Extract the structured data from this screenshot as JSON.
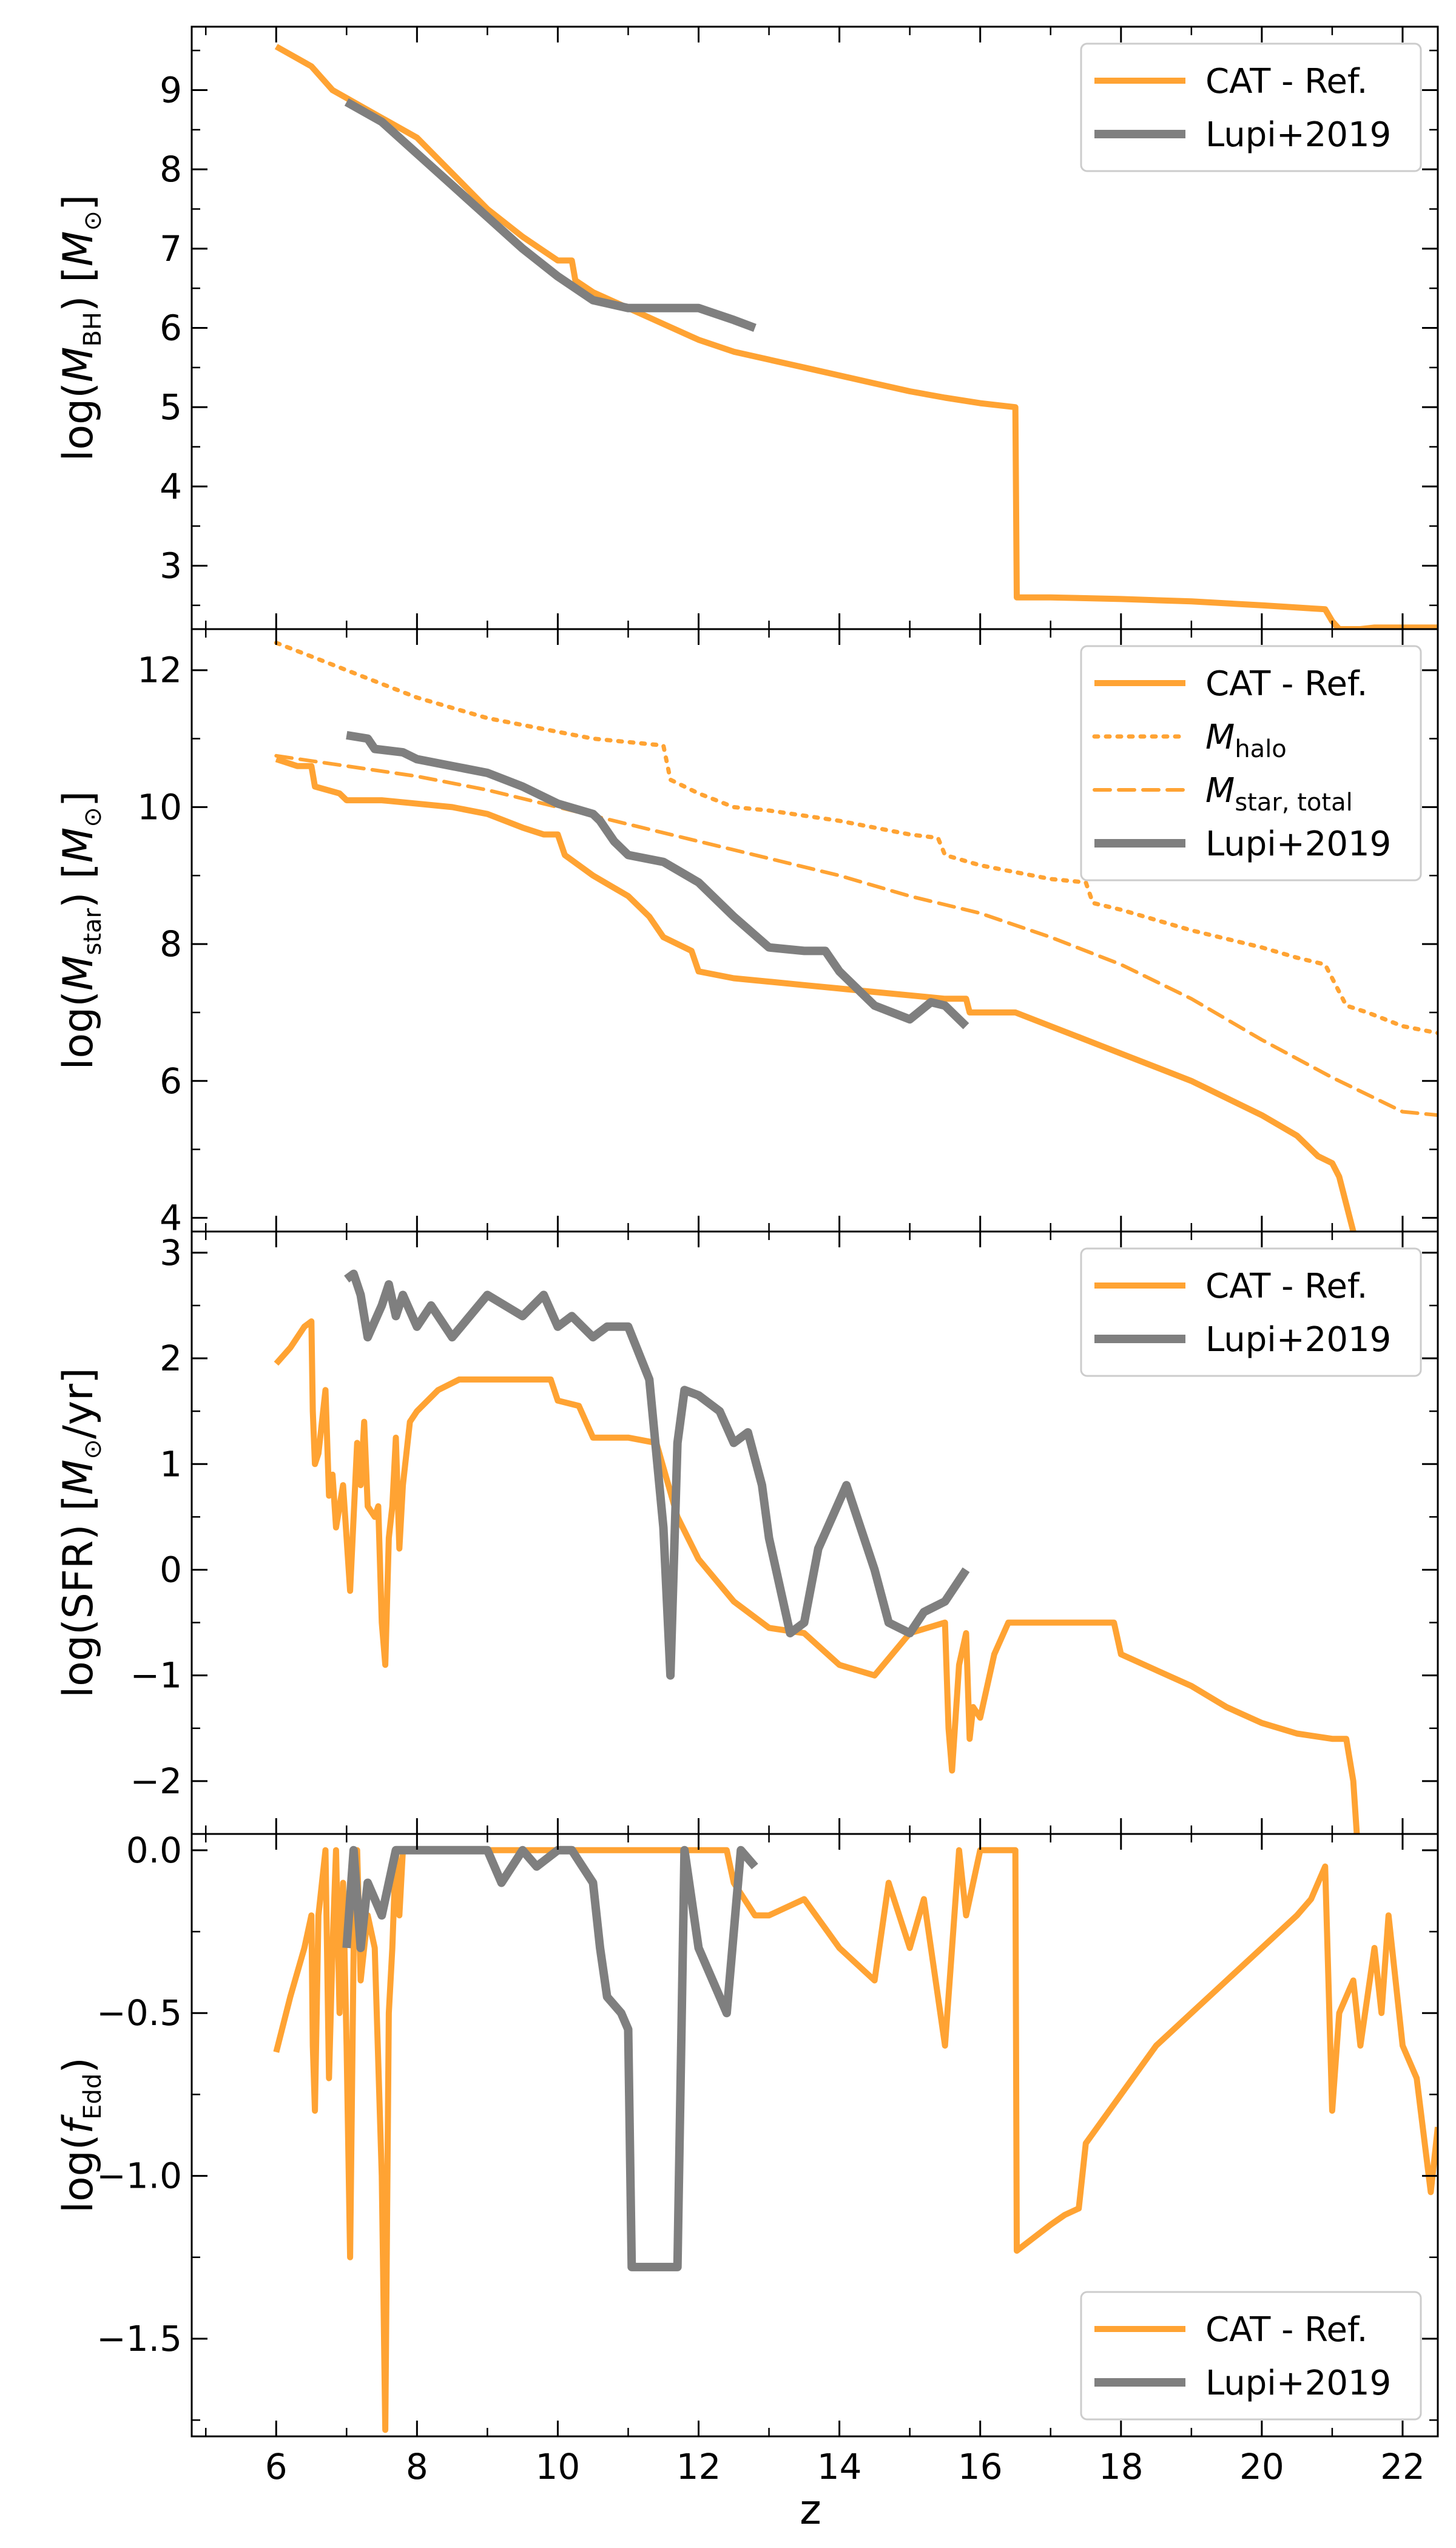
{
  "colors": {
    "cat": "#ffa333",
    "lupi": "#7f7f7f"
  },
  "xlabel": "z",
  "xlim": [
    4.8,
    22.5
  ],
  "xticks": [
    6,
    8,
    10,
    12,
    14,
    16,
    18,
    20,
    22
  ],
  "xtick_labels": [
    "6",
    "8",
    "10",
    "12",
    "14",
    "16",
    "18",
    "20",
    "22"
  ],
  "chart_data": [
    {
      "type": "line",
      "ylabel": {
        "pre": "log(",
        "var": "M",
        "sub": "BH",
        "post": ") [",
        "unit_var": "M",
        "unit_sub": "⊙",
        "close": "]"
      },
      "ylim": [
        2.2,
        9.8
      ],
      "yticks": [
        3,
        4,
        5,
        6,
        7,
        8,
        9
      ],
      "ytick_labels": [
        "3",
        "4",
        "5",
        "6",
        "7",
        "8",
        "9"
      ],
      "legend": {
        "position": "top-right",
        "entries": [
          {
            "label": "CAT - Ref.",
            "series": 0
          },
          {
            "label": "Lupi+2019",
            "series": 1
          }
        ]
      },
      "series": [
        {
          "name": "CAT - Ref.",
          "color": "cat",
          "style": "solid",
          "width": 10,
          "x": [
            6.0,
            6.5,
            6.8,
            7.2,
            7.5,
            8.0,
            8.5,
            9.0,
            9.5,
            10.0,
            10.2,
            10.25,
            10.5,
            11.0,
            11.5,
            12.0,
            12.5,
            13.0,
            13.5,
            14.0,
            14.5,
            15.0,
            15.5,
            16.0,
            16.5,
            16.52,
            17.0,
            18.0,
            19.0,
            20.0,
            20.9,
            21.0,
            21.1,
            21.4,
            21.6,
            22.5
          ],
          "y": [
            9.55,
            9.3,
            9.0,
            8.8,
            8.65,
            8.4,
            7.95,
            7.5,
            7.15,
            6.85,
            6.85,
            6.6,
            6.45,
            6.25,
            6.05,
            5.85,
            5.7,
            5.6,
            5.5,
            5.4,
            5.3,
            5.2,
            5.12,
            5.05,
            5.0,
            2.6,
            2.6,
            2.58,
            2.55,
            2.5,
            2.45,
            2.3,
            2.2,
            2.2,
            2.22,
            2.22
          ]
        },
        {
          "name": "Lupi+2019",
          "color": "lupi",
          "style": "solid",
          "width": 14,
          "x": [
            7.0,
            7.5,
            8.0,
            8.5,
            9.0,
            9.5,
            10.0,
            10.5,
            11.0,
            11.5,
            12.0,
            12.5,
            12.8
          ],
          "y": [
            8.85,
            8.6,
            8.2,
            7.8,
            7.4,
            7.0,
            6.65,
            6.35,
            6.25,
            6.25,
            6.25,
            6.1,
            6.0
          ]
        }
      ]
    },
    {
      "type": "line",
      "ylabel": {
        "pre": "log(",
        "var": "M",
        "sub": "star",
        "post": ") [",
        "unit_var": "M",
        "unit_sub": "⊙",
        "close": "]"
      },
      "ylim": [
        3.8,
        12.6
      ],
      "yticks": [
        4,
        6,
        8,
        10,
        12
      ],
      "ytick_labels": [
        "4",
        "6",
        "8",
        "10",
        "12"
      ],
      "legend": {
        "position": "top-right",
        "entries": [
          {
            "label": "CAT - Ref.",
            "series": 0
          },
          {
            "label_var": "M",
            "label_sub": "halo",
            "series": 1
          },
          {
            "label_var": "M",
            "label_sub": "star, total",
            "series": 2
          },
          {
            "label": "Lupi+2019",
            "series": 3
          }
        ]
      },
      "series": [
        {
          "name": "CAT - Ref.",
          "color": "cat",
          "style": "solid",
          "width": 10,
          "x": [
            6.0,
            6.3,
            6.5,
            6.55,
            6.9,
            7.0,
            7.1,
            7.5,
            8.0,
            8.5,
            9.0,
            9.5,
            9.8,
            10.0,
            10.1,
            10.5,
            11.0,
            11.3,
            11.5,
            11.9,
            12.0,
            12.5,
            13.0,
            13.5,
            14.0,
            14.5,
            15.0,
            15.5,
            15.8,
            15.85,
            16.5,
            17.0,
            17.5,
            18.0,
            18.5,
            19.0,
            19.5,
            20.0,
            20.5,
            20.8,
            21.0,
            21.1,
            21.2,
            21.3
          ],
          "y": [
            10.7,
            10.6,
            10.6,
            10.3,
            10.2,
            10.1,
            10.1,
            10.1,
            10.05,
            10.0,
            9.9,
            9.7,
            9.6,
            9.6,
            9.3,
            9.0,
            8.7,
            8.4,
            8.1,
            7.9,
            7.6,
            7.5,
            7.45,
            7.4,
            7.35,
            7.3,
            7.25,
            7.2,
            7.2,
            7.0,
            7.0,
            6.8,
            6.6,
            6.4,
            6.2,
            6.0,
            5.75,
            5.5,
            5.2,
            4.9,
            4.8,
            4.6,
            4.2,
            3.8
          ]
        },
        {
          "name": "",
          "color": "cat",
          "style": "dotted",
          "width": 7,
          "x": [
            6.0,
            6.5,
            7.0,
            7.5,
            8.0,
            8.5,
            9.0,
            9.5,
            10.0,
            10.5,
            11.0,
            11.5,
            11.6,
            12.0,
            12.5,
            13.0,
            14.0,
            15.0,
            15.4,
            15.5,
            16.0,
            17.0,
            17.5,
            17.6,
            18.0,
            19.0,
            20.0,
            20.5,
            20.9,
            21.2,
            21.5,
            22.0,
            22.5
          ],
          "y": [
            12.4,
            12.2,
            12.0,
            11.8,
            11.6,
            11.45,
            11.3,
            11.2,
            11.1,
            11.0,
            10.95,
            10.9,
            10.4,
            10.2,
            10.0,
            9.95,
            9.8,
            9.6,
            9.55,
            9.3,
            9.15,
            8.95,
            8.9,
            8.6,
            8.5,
            8.2,
            7.95,
            7.8,
            7.7,
            7.1,
            7.0,
            6.8,
            6.7
          ]
        },
        {
          "name": "",
          "color": "cat",
          "style": "dashed",
          "width": 6,
          "x": [
            6.0,
            7.0,
            8.0,
            9.0,
            10.0,
            11.0,
            12.0,
            13.0,
            14.0,
            15.0,
            16.0,
            17.0,
            18.0,
            19.0,
            20.0,
            21.0,
            22.0,
            22.5
          ],
          "y": [
            10.75,
            10.6,
            10.45,
            10.25,
            10.0,
            9.75,
            9.5,
            9.25,
            9.0,
            8.7,
            8.45,
            8.1,
            7.7,
            7.2,
            6.6,
            6.05,
            5.55,
            5.5
          ]
        },
        {
          "name": "Lupi+2019",
          "color": "lupi",
          "style": "solid",
          "width": 14,
          "x": [
            7.0,
            7.3,
            7.4,
            7.8,
            8.0,
            8.5,
            9.0,
            9.5,
            10.0,
            10.5,
            10.6,
            10.8,
            11.0,
            11.5,
            12.0,
            12.5,
            13.0,
            13.5,
            13.8,
            14.0,
            14.5,
            15.0,
            15.3,
            15.5,
            15.8
          ],
          "y": [
            11.05,
            11.0,
            10.85,
            10.8,
            10.7,
            10.6,
            10.5,
            10.3,
            10.05,
            9.9,
            9.8,
            9.5,
            9.3,
            9.2,
            8.9,
            8.4,
            7.95,
            7.9,
            7.9,
            7.6,
            7.1,
            6.9,
            7.15,
            7.1,
            6.8
          ]
        }
      ]
    },
    {
      "type": "line",
      "ylabel": {
        "pre": "log(SFR) [",
        "unit_var": "M",
        "unit_sub": "⊙",
        "unit_post": "/yr]"
      },
      "ylim": [
        -2.5,
        3.2
      ],
      "yticks": [
        -2,
        -1,
        0,
        1,
        2,
        3
      ],
      "ytick_labels": [
        "−2",
        "−1",
        "0",
        "1",
        "2",
        "3"
      ],
      "legend": {
        "position": "top-right",
        "entries": [
          {
            "label": "CAT - Ref.",
            "series": 0
          },
          {
            "label": "Lupi+2019",
            "series": 1
          }
        ]
      },
      "series": [
        {
          "name": "CAT - Ref.",
          "color": "cat",
          "style": "solid",
          "width": 10,
          "x": [
            6.0,
            6.2,
            6.4,
            6.5,
            6.52,
            6.55,
            6.6,
            6.7,
            6.75,
            6.8,
            6.85,
            6.9,
            6.95,
            7.0,
            7.05,
            7.1,
            7.15,
            7.2,
            7.25,
            7.3,
            7.4,
            7.45,
            7.5,
            7.55,
            7.6,
            7.65,
            7.7,
            7.75,
            7.8,
            7.9,
            8.0,
            8.3,
            8.6,
            9.0,
            9.5,
            9.9,
            10.0,
            10.3,
            10.5,
            11.0,
            11.4,
            11.7,
            12.0,
            12.5,
            13.0,
            13.5,
            14.0,
            14.5,
            15.0,
            15.5,
            15.55,
            15.6,
            15.7,
            15.8,
            15.85,
            15.9,
            16.0,
            16.2,
            16.4,
            16.6,
            16.9,
            17.5,
            17.9,
            18.0,
            18.5,
            19.0,
            19.5,
            20.0,
            20.5,
            21.0,
            21.2,
            21.3,
            21.35
          ],
          "y": [
            1.95,
            2.1,
            2.3,
            2.35,
            1.5,
            1.0,
            1.1,
            1.7,
            0.7,
            0.9,
            0.4,
            0.6,
            0.8,
            0.3,
            -0.2,
            0.5,
            1.2,
            0.8,
            1.4,
            0.6,
            0.5,
            0.6,
            -0.5,
            -0.9,
            0.3,
            0.6,
            1.25,
            0.2,
            0.8,
            1.4,
            1.5,
            1.7,
            1.8,
            1.8,
            1.8,
            1.8,
            1.6,
            1.55,
            1.25,
            1.25,
            1.2,
            0.5,
            0.1,
            -0.3,
            -0.55,
            -0.6,
            -0.9,
            -1.0,
            -0.6,
            -0.5,
            -1.5,
            -1.9,
            -0.9,
            -0.6,
            -1.6,
            -1.3,
            -1.4,
            -0.8,
            -0.5,
            -0.5,
            -0.5,
            -0.5,
            -0.5,
            -0.8,
            -0.95,
            -1.1,
            -1.3,
            -1.45,
            -1.55,
            -1.6,
            -1.6,
            -2.0,
            -2.5
          ]
        },
        {
          "name": "Lupi+2019",
          "color": "lupi",
          "style": "solid",
          "width": 14,
          "x": [
            7.0,
            7.1,
            7.2,
            7.3,
            7.5,
            7.6,
            7.7,
            7.8,
            8.0,
            8.2,
            8.5,
            9.0,
            9.5,
            9.8,
            10.0,
            10.2,
            10.5,
            10.7,
            11.0,
            11.3,
            11.5,
            11.6,
            11.7,
            11.8,
            12.0,
            12.3,
            12.5,
            12.7,
            12.9,
            13.0,
            13.2,
            13.3,
            13.5,
            13.7,
            13.9,
            14.1,
            14.3,
            14.5,
            14.7,
            15.0,
            15.2,
            15.5,
            15.8
          ],
          "y": [
            2.75,
            2.8,
            2.6,
            2.2,
            2.5,
            2.7,
            2.4,
            2.6,
            2.3,
            2.5,
            2.2,
            2.6,
            2.4,
            2.6,
            2.3,
            2.4,
            2.2,
            2.3,
            2.3,
            1.8,
            0.4,
            -1.0,
            1.2,
            1.7,
            1.65,
            1.5,
            1.2,
            1.3,
            0.8,
            0.3,
            -0.3,
            -0.6,
            -0.5,
            0.2,
            0.5,
            0.8,
            0.4,
            0.0,
            -0.5,
            -0.6,
            -0.4,
            -0.3,
            0.0
          ]
        }
      ]
    },
    {
      "type": "line",
      "ylabel": {
        "pre": "log(",
        "var": "f",
        "sub": "Edd",
        "post": ")"
      },
      "ylim": [
        -1.8,
        0.05
      ],
      "yticks": [
        -1.5,
        -1.0,
        -0.5,
        0.0
      ],
      "ytick_labels": [
        "−1.5",
        "−1.0",
        "−0.5",
        "0.0"
      ],
      "legend": {
        "position": "bottom-right",
        "entries": [
          {
            "label": "CAT - Ref.",
            "series": 0
          },
          {
            "label": "Lupi+2019",
            "series": 1
          }
        ]
      },
      "series": [
        {
          "name": "CAT - Ref.",
          "color": "cat",
          "style": "solid",
          "width": 10,
          "x": [
            6.0,
            6.2,
            6.4,
            6.5,
            6.52,
            6.55,
            6.6,
            6.7,
            6.75,
            6.8,
            6.85,
            6.9,
            6.95,
            7.0,
            7.05,
            7.1,
            7.15,
            7.2,
            7.3,
            7.4,
            7.5,
            7.55,
            7.6,
            7.65,
            7.7,
            7.75,
            7.8,
            7.9,
            8.0,
            9.0,
            10.0,
            11.0,
            12.0,
            12.4,
            12.5,
            12.8,
            13.0,
            13.5,
            14.0,
            14.5,
            14.7,
            15.0,
            15.2,
            15.5,
            15.7,
            15.8,
            16.0,
            16.2,
            16.5,
            16.52,
            17.0,
            17.2,
            17.4,
            17.5,
            18.0,
            18.5,
            19.0,
            19.5,
            20.0,
            20.5,
            20.7,
            20.9,
            21.0,
            21.1,
            21.3,
            21.4,
            21.6,
            21.7,
            21.8,
            21.9,
            22.0,
            22.2,
            22.4,
            22.5
          ],
          "y": [
            -0.62,
            -0.45,
            -0.3,
            -0.2,
            -0.6,
            -0.8,
            -0.2,
            0.0,
            -0.7,
            -0.3,
            0.0,
            -0.5,
            -0.1,
            -0.6,
            -1.25,
            -0.3,
            0.0,
            -0.4,
            -0.2,
            -0.3,
            -1.0,
            -1.78,
            -0.5,
            -0.3,
            0.0,
            -0.2,
            0.0,
            0.0,
            0.0,
            0.0,
            0.0,
            0.0,
            0.0,
            0.0,
            -0.1,
            -0.2,
            -0.2,
            -0.15,
            -0.3,
            -0.4,
            -0.1,
            -0.3,
            -0.15,
            -0.6,
            0.0,
            -0.2,
            0.0,
            0.0,
            0.0,
            -1.23,
            -1.15,
            -1.12,
            -1.1,
            -0.9,
            -0.75,
            -0.6,
            -0.5,
            -0.4,
            -0.3,
            -0.2,
            -0.15,
            -0.05,
            -0.8,
            -0.5,
            -0.4,
            -0.6,
            -0.3,
            -0.5,
            -0.2,
            -0.4,
            -0.6,
            -0.7,
            -1.05,
            -0.85
          ]
        },
        {
          "name": "Lupi+2019",
          "color": "lupi",
          "style": "solid",
          "width": 14,
          "x": [
            7.0,
            7.1,
            7.2,
            7.3,
            7.5,
            7.7,
            8.0,
            8.5,
            9.0,
            9.2,
            9.5,
            9.7,
            10.0,
            10.2,
            10.5,
            10.6,
            10.7,
            10.9,
            11.0,
            11.05,
            11.1,
            11.5,
            11.7,
            11.8,
            12.0,
            12.2,
            12.4,
            12.6,
            12.8
          ],
          "y": [
            -0.3,
            0.0,
            -0.3,
            -0.1,
            -0.2,
            0.0,
            0.0,
            0.0,
            0.0,
            -0.1,
            0.0,
            -0.05,
            0.0,
            0.0,
            -0.1,
            -0.3,
            -0.45,
            -0.5,
            -0.55,
            -1.28,
            -1.28,
            -1.28,
            -1.28,
            0.0,
            -0.3,
            -0.4,
            -0.5,
            0.0,
            -0.05
          ]
        }
      ]
    }
  ]
}
